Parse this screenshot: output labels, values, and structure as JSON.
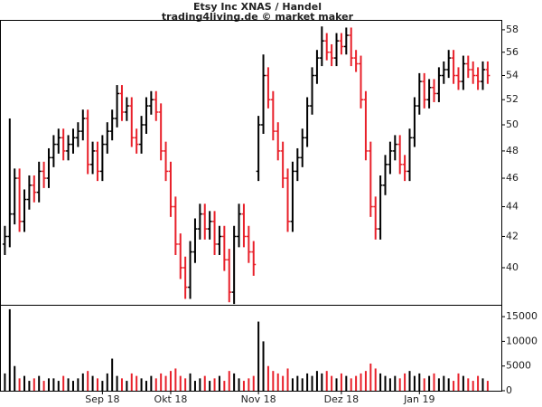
{
  "chart_data": {
    "type": "ohlc",
    "title": "Etsy Inc XNAS / Handel",
    "subtitle": "trading4living.de © market maker",
    "up_color": "#000000",
    "down_color": "#e8202a",
    "volume_color": "#000000",
    "ylog": true,
    "xlim": [
      -1,
      101.8
    ],
    "xticks": [
      {
        "value": 20,
        "label": "Sep 18"
      },
      {
        "value": 34,
        "label": "Okt 18"
      },
      {
        "value": 52,
        "label": "Nov 18"
      },
      {
        "value": 69,
        "label": "Dez 18"
      },
      {
        "value": 85,
        "label": "Jan 19"
      }
    ],
    "ylim": [
      37.75,
      58.9
    ],
    "yticks": [
      40,
      42,
      44,
      46,
      48,
      50,
      52,
      54,
      56,
      58
    ],
    "y2lim": [
      0,
      17400
    ],
    "y2ticks": [
      0,
      5000,
      10000,
      15000
    ],
    "open": [
      41.5,
      42,
      43.5,
      46,
      43,
      44.5,
      45.5,
      45,
      46.5,
      46,
      47.5,
      48.5,
      49,
      48,
      48.5,
      49,
      49.5,
      50.5,
      47,
      48,
      46.5,
      48.5,
      49.5,
      50.5,
      52.5,
      51,
      51.5,
      49,
      48.5,
      50,
      51.5,
      52,
      51,
      48,
      46.5,
      44,
      41.5,
      40,
      38.8,
      41,
      42.5,
      43.5,
      42.5,
      43,
      41.5,
      42,
      40.5,
      38.5,
      42,
      43.5,
      42,
      41,
      46.5,
      50,
      54,
      52,
      49.5,
      48,
      46,
      43,
      46.5,
      47.5,
      49,
      51.5,
      54,
      55.5,
      57,
      56,
      55.5,
      57,
      56.5,
      57.5,
      55.5,
      55,
      52,
      48,
      44,
      42.5,
      45.5,
      47,
      48,
      48.5,
      47,
      46.5,
      49,
      51.5,
      53.5,
      52,
      53,
      52.5,
      54,
      54.5,
      55.5,
      54,
      53.5,
      55,
      54.5,
      54,
      53.5,
      54.5
    ],
    "high": [
      42.7,
      50.5,
      46.7,
      46.7,
      45.2,
      46.2,
      46.2,
      47.2,
      47.2,
      48.2,
      49.2,
      49.7,
      49.7,
      49.2,
      49.7,
      50.2,
      51.2,
      51.2,
      48.7,
      48.7,
      49.2,
      50.2,
      51.2,
      53.2,
      53.2,
      52.2,
      52.2,
      49.7,
      50.7,
      52.2,
      52.7,
      52.7,
      51.7,
      48.7,
      47.2,
      44.7,
      42.2,
      40.7,
      41.7,
      43.2,
      44.2,
      44.2,
      43.7,
      43.7,
      42.7,
      42.7,
      41.2,
      42.7,
      44.2,
      44.2,
      42.7,
      41.7,
      50.7,
      55.8,
      54.7,
      52.7,
      50.2,
      48.7,
      46.7,
      47.2,
      48.2,
      49.7,
      52.2,
      54.7,
      56.2,
      58.3,
      57.7,
      56.7,
      57.7,
      57.7,
      58.2,
      58.2,
      56.2,
      55.7,
      52.7,
      48.7,
      44.7,
      46.2,
      47.7,
      48.7,
      49.2,
      49.2,
      47.7,
      49.7,
      52.2,
      54.2,
      54.2,
      53.7,
      53.7,
      54.7,
      55.2,
      56.2,
      56.2,
      54.7,
      55.7,
      55.7,
      55.2,
      54.7,
      55.2,
      55.2
    ],
    "low": [
      40.8,
      41.3,
      42.8,
      42.3,
      42.3,
      43.8,
      44.3,
      44.3,
      45.3,
      45.3,
      46.8,
      47.8,
      47.3,
      47.3,
      47.8,
      48.3,
      48.8,
      46.3,
      46.3,
      45.8,
      45.8,
      47.8,
      48.8,
      49.8,
      50.3,
      50.3,
      48.3,
      47.8,
      47.8,
      49.3,
      50.8,
      50.3,
      47.3,
      45.8,
      43.3,
      40.8,
      39.3,
      38.1,
      38.1,
      40.3,
      41.8,
      41.8,
      41.8,
      40.8,
      40.8,
      39.8,
      37.9,
      37.8,
      41.3,
      41.3,
      40.3,
      39.5,
      45.8,
      49.3,
      51.3,
      48.8,
      47.3,
      45.3,
      42.3,
      42.3,
      45.8,
      46.8,
      48.3,
      50.8,
      53.3,
      54.8,
      55.3,
      54.8,
      54.8,
      55.8,
      55.8,
      54.8,
      54.3,
      51.3,
      47.3,
      43.3,
      41.8,
      41.8,
      44.8,
      46.3,
      47.3,
      46.3,
      45.8,
      45.8,
      48.3,
      50.8,
      51.3,
      51.3,
      51.8,
      51.8,
      53.3,
      53.8,
      53.3,
      52.8,
      52.8,
      53.8,
      53.3,
      52.8,
      52.8,
      53.3
    ],
    "close": [
      42,
      43.5,
      46,
      43,
      44.5,
      45.5,
      45,
      46.5,
      46,
      47.5,
      48.5,
      49,
      48,
      48.5,
      49,
      49.5,
      50.5,
      47,
      48,
      46.5,
      48.5,
      49.5,
      50.5,
      52.5,
      51,
      51.5,
      49,
      48.5,
      50,
      51.5,
      52,
      51,
      48,
      46.5,
      44,
      41.5,
      40,
      38.8,
      41,
      42.5,
      43.5,
      42.5,
      43,
      41.5,
      42,
      40.5,
      38.5,
      42,
      43.5,
      42,
      41,
      40.2,
      50,
      54,
      52,
      49.5,
      48,
      46,
      43,
      46.5,
      47.5,
      49,
      51.5,
      54,
      55.5,
      57,
      56,
      55.5,
      57,
      56.5,
      57.5,
      55.5,
      55,
      52,
      48,
      44,
      42.5,
      45.5,
      47,
      48,
      48.5,
      47,
      46.5,
      49,
      51.5,
      53.5,
      52,
      53,
      52.5,
      54,
      54.5,
      55.5,
      54,
      53.5,
      55,
      54.5,
      54,
      53.5,
      54.5,
      54
    ],
    "volume": [
      3500,
      16500,
      5000,
      2500,
      3000,
      2000,
      2500,
      3000,
      2000,
      2500,
      2500,
      2000,
      3000,
      2500,
      2000,
      2500,
      3500,
      4000,
      3000,
      2500,
      2000,
      3500,
      6500,
      3000,
      2500,
      2000,
      3500,
      3000,
      2500,
      2000,
      3000,
      2500,
      3500,
      3000,
      4000,
      4500,
      3000,
      2500,
      3500,
      2000,
      2500,
      3000,
      2000,
      2500,
      3000,
      2000,
      4000,
      3500,
      2500,
      2000,
      2500,
      3000,
      14000,
      10000,
      5000,
      4000,
      3500,
      3000,
      4500,
      2500,
      3000,
      2500,
      3500,
      3000,
      4000,
      3500,
      4000,
      3000,
      2500,
      3500,
      3000,
      2500,
      3000,
      3500,
      4000,
      5500,
      4500,
      3500,
      3000,
      2500,
      3000,
      2500,
      3500,
      4000,
      3000,
      3500,
      2500,
      3000,
      3500,
      2500,
      3000,
      2500,
      2000,
      3500,
      3000,
      2500,
      2000,
      3000,
      2500,
      2000
    ]
  }
}
